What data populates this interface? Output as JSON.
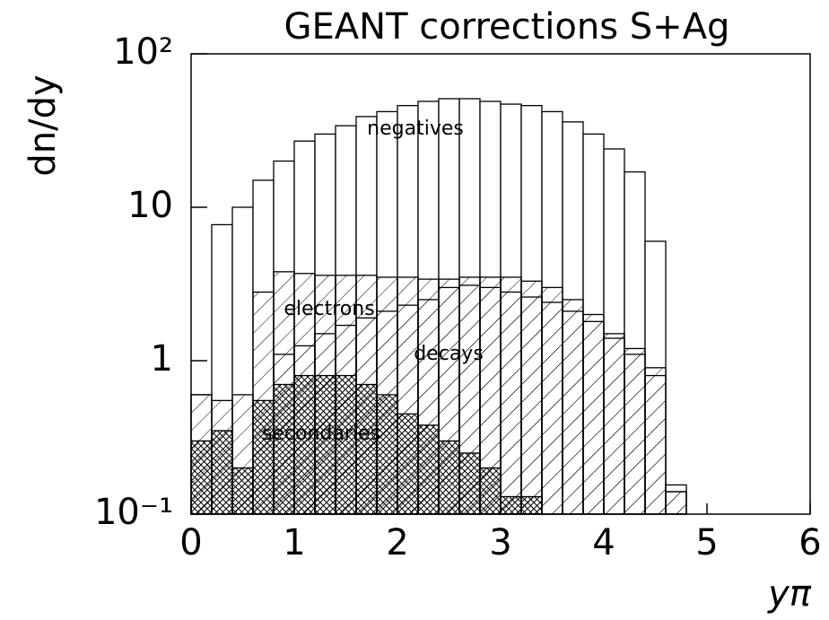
{
  "chart_data": {
    "type": "histogram",
    "title": "GEANT corrections S+Ag",
    "y_label": "dn/dy",
    "x_label": "yπ",
    "log_y": true,
    "bins": [
      0,
      0.2,
      0.4,
      0.6,
      0.8,
      1.0,
      1.2,
      1.4,
      1.6,
      1.8,
      2.0,
      2.2,
      2.4,
      2.6,
      2.8,
      3.0,
      3.2,
      3.4,
      3.6,
      3.8,
      4.0,
      4.2,
      4.4,
      4.6,
      4.8,
      5.0
    ],
    "series": [
      {
        "name": "negatives",
        "color": "#000000",
        "fill": "none",
        "values": [
          0.6,
          7.7,
          10,
          15,
          20,
          27,
          30,
          34,
          39,
          42,
          46,
          49,
          51,
          51,
          49,
          47,
          46,
          42,
          36,
          30,
          24,
          17,
          6,
          0.155,
          null
        ]
      },
      {
        "name": "electrons",
        "color": "#000000",
        "fill": "hatch",
        "values": [
          0.6,
          0.55,
          0.6,
          2.8,
          3.8,
          3.7,
          3.6,
          3.6,
          3.6,
          3.5,
          3.5,
          3.4,
          3.4,
          3.5,
          3.5,
          3.5,
          3.3,
          3.0,
          2.5,
          2.0,
          1.5,
          1.2,
          0.8,
          0.14,
          null
        ]
      },
      {
        "name": "decays",
        "color": "#000000",
        "fill": "hatch",
        "values": [
          null,
          null,
          null,
          null,
          1.1,
          1.25,
          1.5,
          1.7,
          1.9,
          2.1,
          2.3,
          2.5,
          3.0,
          3.1,
          3.0,
          2.8,
          2.6,
          2.4,
          2.1,
          1.8,
          1.4,
          1.1,
          0.9,
          0.14,
          null
        ]
      },
      {
        "name": "secondaries",
        "color": "#000000",
        "fill": "crosshatch",
        "values": [
          0.3,
          0.35,
          0.2,
          0.55,
          0.7,
          0.8,
          0.8,
          0.8,
          0.7,
          0.6,
          0.45,
          0.38,
          0.3,
          0.25,
          0.2,
          0.13,
          0.13,
          null,
          null,
          null,
          null,
          null,
          null,
          null,
          null
        ]
      }
    ],
    "xlim": [
      0,
      6
    ],
    "xticks": [
      0,
      1,
      2,
      3,
      4,
      5,
      6
    ],
    "ylim": [
      0.1,
      100
    ],
    "yticks": [
      {
        "value": 0.1,
        "label": "10⁻¹"
      },
      1,
      10,
      {
        "value": 100,
        "label": "10²"
      }
    ]
  }
}
